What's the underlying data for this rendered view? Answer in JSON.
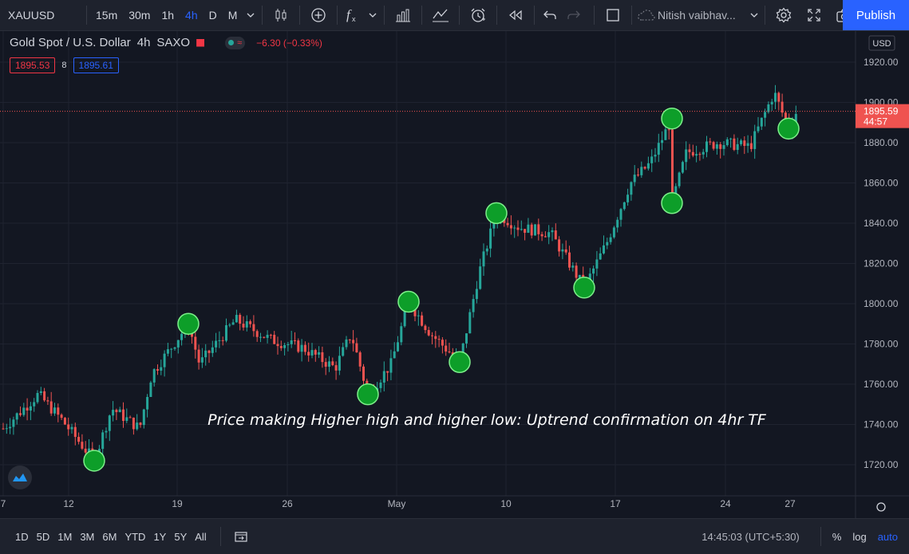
{
  "toolbar": {
    "symbol": "XAUUSD",
    "intervals": [
      "15m",
      "30m",
      "1h",
      "4h",
      "D",
      "M"
    ],
    "active_interval": "4h",
    "user": "Nitish vaibhav...",
    "publish_label": "Publish"
  },
  "legend": {
    "title": "Gold Spot / U.S. Dollar",
    "timeframe": "4h",
    "exchange": "SAXO",
    "change": "−6.30 (−0.33%)",
    "sell_price": "1895.53",
    "spread": "8",
    "buy_price": "1895.61"
  },
  "chart_data": {
    "type": "candlestick",
    "currency": "USD",
    "y_ticks": [
      1920,
      1900,
      1880,
      1860,
      1840,
      1820,
      1800,
      1780,
      1760,
      1740,
      1720
    ],
    "y_tick_labels": [
      "1920.00",
      "1900.00",
      "1880.00",
      "1860.00",
      "1840.00",
      "1820.00",
      "1800.00",
      "1780.00",
      "1760.00",
      "1740.00",
      "1720.00"
    ],
    "ylim": [
      1704,
      1923
    ],
    "x_tick_labels": [
      "7",
      "12",
      "19",
      "26",
      "May",
      "10",
      "17",
      "24",
      "27"
    ],
    "last_price": "1895.59",
    "countdown": "44:57",
    "annotation": "Price making Higher high and higher low: Uptrend confirmation on 4hr TF",
    "swing_points": [
      1722,
      1790,
      1755,
      1801,
      1771,
      1845,
      1808,
      1892,
      1850,
      1887
    ],
    "colors": {
      "up": "#26a69a",
      "down": "#ef5350",
      "marker": "#0d9e29",
      "marker_stroke": "#7df08a"
    }
  },
  "bottom": {
    "ranges": [
      "1D",
      "5D",
      "1M",
      "3M",
      "6M",
      "YTD",
      "1Y",
      "5Y",
      "All"
    ],
    "time": "14:45:03 (UTC+5:30)",
    "percent_label": "%",
    "log_label": "log",
    "auto_label": "auto"
  }
}
